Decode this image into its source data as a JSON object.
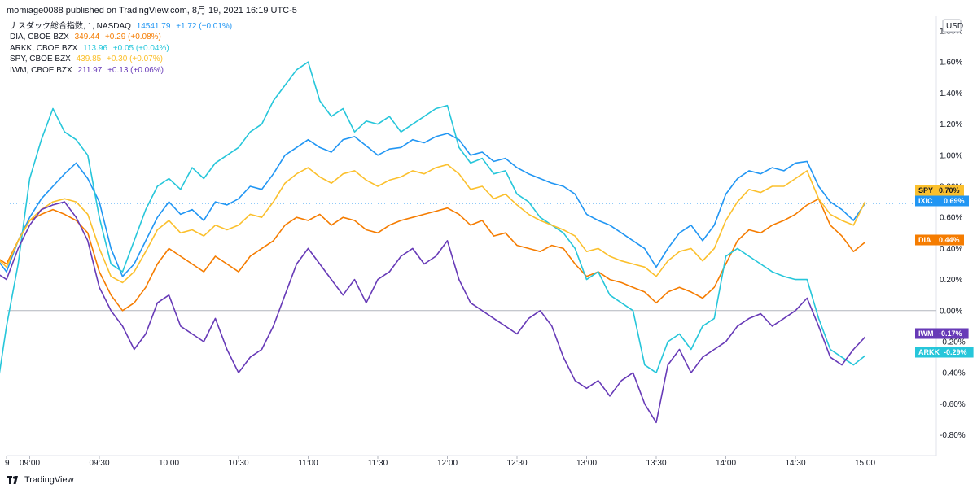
{
  "header": {
    "text": "momiage0088 published on TradingView.com, 8月 19, 2021 16:19 UTC-5"
  },
  "legend": [
    {
      "name": "ナスダック総合指数, 1, NASDAQ",
      "value": "14541.79",
      "change": "+1.72 (+0.01%)",
      "color": "#2196f3"
    },
    {
      "name": "DIA, CBOE BZX",
      "value": "349.44",
      "change": "+0.29 (+0.08%)",
      "color": "#f57c00"
    },
    {
      "name": "ARKK, CBOE BZX",
      "value": "113.96",
      "change": "+0.05 (+0.04%)",
      "color": "#26c6da"
    },
    {
      "name": "SPY, CBOE BZX",
      "value": "439.85",
      "change": "+0.30 (+0.07%)",
      "color": "#fbc02d"
    },
    {
      "name": "IWM, CBOE BZX",
      "value": "211.97",
      "change": "+0.13 (+0.06%)",
      "color": "#673ab7"
    }
  ],
  "footer": {
    "brand": "TradingView"
  },
  "chart_data": {
    "type": "line",
    "y_unit": "USD",
    "y_ticks": [
      "1.80%",
      "1.60%",
      "1.40%",
      "1.20%",
      "1.00%",
      "0.80%",
      "0.60%",
      "0.40%",
      "0.20%",
      "0.00%",
      "-0.20%",
      "-0.40%",
      "-0.60%",
      "-0.80%"
    ],
    "x_ticks": [
      "9",
      "09:00",
      "09:30",
      "10:00",
      "10:30",
      "11:00",
      "11:30",
      "12:00",
      "12:30",
      "13:00",
      "13:30",
      "14:00",
      "14:30",
      "15:00"
    ],
    "ylim": [
      -0.85,
      1.85
    ],
    "x_range": [
      "08:30",
      "15:05"
    ],
    "zero_line": 0,
    "last_price_line": 0.69,
    "series": [
      {
        "name": "IXIC",
        "color": "#2196f3",
        "last_label": "0.69%",
        "x": [
          "08:30",
          "08:35",
          "08:40",
          "08:45",
          "08:50",
          "08:55",
          "09:00",
          "09:05",
          "09:10",
          "09:15",
          "09:20",
          "09:25",
          "09:30",
          "09:35",
          "09:40",
          "09:45",
          "09:50",
          "09:55",
          "10:00",
          "10:05",
          "10:10",
          "10:15",
          "10:20",
          "10:25",
          "10:30",
          "10:35",
          "10:40",
          "10:45",
          "10:50",
          "10:55",
          "11:00",
          "11:05",
          "11:10",
          "11:15",
          "11:20",
          "11:25",
          "11:30",
          "11:35",
          "11:40",
          "11:45",
          "11:50",
          "11:55",
          "12:00",
          "12:05",
          "12:10",
          "12:15",
          "12:20",
          "12:25",
          "12:30",
          "12:35",
          "12:40",
          "12:45",
          "12:50",
          "12:55",
          "13:00",
          "13:05",
          "13:10",
          "13:15",
          "13:20",
          "13:25",
          "13:30",
          "13:35",
          "13:40",
          "13:45",
          "13:50",
          "13:55",
          "14:00",
          "14:05",
          "14:10",
          "14:15",
          "14:20",
          "14:25",
          "14:30",
          "14:35",
          "14:40",
          "14:45",
          "14:50",
          "14:55",
          "15:00"
        ],
        "y": [
          0.15,
          0.3,
          0.1,
          0.35,
          0.25,
          0.45,
          0.6,
          0.72,
          0.8,
          0.88,
          0.95,
          0.85,
          0.7,
          0.4,
          0.22,
          0.3,
          0.45,
          0.6,
          0.7,
          0.62,
          0.65,
          0.58,
          0.7,
          0.68,
          0.72,
          0.8,
          0.78,
          0.88,
          1.0,
          1.05,
          1.1,
          1.05,
          1.02,
          1.1,
          1.12,
          1.06,
          1.0,
          1.04,
          1.05,
          1.1,
          1.08,
          1.12,
          1.14,
          1.1,
          1.0,
          1.02,
          0.96,
          0.98,
          0.92,
          0.88,
          0.85,
          0.82,
          0.8,
          0.75,
          0.62,
          0.58,
          0.55,
          0.5,
          0.45,
          0.4,
          0.28,
          0.4,
          0.5,
          0.55,
          0.45,
          0.55,
          0.75,
          0.85,
          0.9,
          0.88,
          0.92,
          0.9,
          0.95,
          0.96,
          0.8,
          0.7,
          0.65,
          0.58,
          0.69
        ]
      },
      {
        "name": "DIA",
        "color": "#f57c00",
        "last_label": "0.44%",
        "x": [
          "08:30",
          "08:35",
          "08:40",
          "08:45",
          "08:50",
          "08:55",
          "09:00",
          "09:05",
          "09:10",
          "09:15",
          "09:20",
          "09:25",
          "09:30",
          "09:35",
          "09:40",
          "09:45",
          "09:50",
          "09:55",
          "10:00",
          "10:05",
          "10:10",
          "10:15",
          "10:20",
          "10:25",
          "10:30",
          "10:35",
          "10:40",
          "10:45",
          "10:50",
          "10:55",
          "11:00",
          "11:05",
          "11:10",
          "11:15",
          "11:20",
          "11:25",
          "11:30",
          "11:35",
          "11:40",
          "11:45",
          "11:50",
          "11:55",
          "12:00",
          "12:05",
          "12:10",
          "12:15",
          "12:20",
          "12:25",
          "12:30",
          "12:35",
          "12:40",
          "12:45",
          "12:50",
          "12:55",
          "13:00",
          "13:05",
          "13:10",
          "13:15",
          "13:20",
          "13:25",
          "13:30",
          "13:35",
          "13:40",
          "13:45",
          "13:50",
          "13:55",
          "14:00",
          "14:05",
          "14:10",
          "14:15",
          "14:20",
          "14:25",
          "14:30",
          "14:35",
          "14:40",
          "14:45",
          "14:50",
          "14:55",
          "15:00"
        ],
        "y": [
          0.2,
          0.32,
          0.15,
          0.35,
          0.3,
          0.45,
          0.58,
          0.62,
          0.65,
          0.62,
          0.58,
          0.5,
          0.25,
          0.1,
          0.0,
          0.05,
          0.15,
          0.3,
          0.4,
          0.35,
          0.3,
          0.25,
          0.35,
          0.3,
          0.25,
          0.35,
          0.4,
          0.45,
          0.55,
          0.6,
          0.58,
          0.62,
          0.55,
          0.6,
          0.58,
          0.52,
          0.5,
          0.55,
          0.58,
          0.6,
          0.62,
          0.64,
          0.66,
          0.62,
          0.55,
          0.58,
          0.48,
          0.5,
          0.42,
          0.4,
          0.38,
          0.42,
          0.4,
          0.3,
          0.22,
          0.25,
          0.2,
          0.18,
          0.15,
          0.12,
          0.05,
          0.12,
          0.15,
          0.12,
          0.08,
          0.15,
          0.3,
          0.45,
          0.52,
          0.5,
          0.55,
          0.58,
          0.62,
          0.68,
          0.72,
          0.55,
          0.48,
          0.38,
          0.44
        ]
      },
      {
        "name": "ARKK",
        "color": "#26c6da",
        "last_label": "-0.29%",
        "x": [
          "08:30",
          "08:35",
          "08:40",
          "08:45",
          "08:50",
          "08:55",
          "09:00",
          "09:05",
          "09:10",
          "09:15",
          "09:20",
          "09:25",
          "09:30",
          "09:35",
          "09:40",
          "09:45",
          "09:50",
          "09:55",
          "10:00",
          "10:05",
          "10:10",
          "10:15",
          "10:20",
          "10:25",
          "10:30",
          "10:35",
          "10:40",
          "10:45",
          "10:50",
          "10:55",
          "11:00",
          "11:05",
          "11:10",
          "11:15",
          "11:20",
          "11:25",
          "11:30",
          "11:35",
          "11:40",
          "11:45",
          "11:50",
          "11:55",
          "12:00",
          "12:05",
          "12:10",
          "12:15",
          "12:20",
          "12:25",
          "12:30",
          "12:35",
          "12:40",
          "12:45",
          "12:50",
          "12:55",
          "13:00",
          "13:05",
          "13:10",
          "13:15",
          "13:20",
          "13:25",
          "13:30",
          "13:35",
          "13:40",
          "13:45",
          "13:50",
          "13:55",
          "14:00",
          "14:05",
          "14:10",
          "14:15",
          "14:20",
          "14:25",
          "14:30",
          "14:35",
          "14:40",
          "14:45",
          "14:50",
          "14:55",
          "15:00"
        ],
        "y": [
          0.0,
          -0.2,
          -0.4,
          -0.6,
          -0.1,
          0.3,
          0.85,
          1.1,
          1.3,
          1.15,
          1.1,
          1.0,
          0.6,
          0.3,
          0.25,
          0.45,
          0.65,
          0.8,
          0.85,
          0.78,
          0.92,
          0.85,
          0.95,
          1.0,
          1.05,
          1.15,
          1.2,
          1.35,
          1.45,
          1.55,
          1.6,
          1.35,
          1.25,
          1.3,
          1.15,
          1.22,
          1.2,
          1.25,
          1.15,
          1.2,
          1.25,
          1.3,
          1.32,
          1.05,
          0.95,
          0.98,
          0.88,
          0.9,
          0.75,
          0.7,
          0.6,
          0.55,
          0.5,
          0.4,
          0.2,
          0.25,
          0.1,
          0.05,
          0.0,
          -0.35,
          -0.4,
          -0.2,
          -0.15,
          -0.25,
          -0.1,
          -0.05,
          0.35,
          0.4,
          0.35,
          0.3,
          0.25,
          0.22,
          0.2,
          0.2,
          -0.05,
          -0.25,
          -0.3,
          -0.35,
          -0.29
        ]
      },
      {
        "name": "SPY",
        "color": "#fbc02d",
        "last_label": "0.70%",
        "x": [
          "08:30",
          "08:35",
          "08:40",
          "08:45",
          "08:50",
          "08:55",
          "09:00",
          "09:05",
          "09:10",
          "09:15",
          "09:20",
          "09:25",
          "09:30",
          "09:35",
          "09:40",
          "09:45",
          "09:50",
          "09:55",
          "10:00",
          "10:05",
          "10:10",
          "10:15",
          "10:20",
          "10:25",
          "10:30",
          "10:35",
          "10:40",
          "10:45",
          "10:50",
          "10:55",
          "11:00",
          "11:05",
          "11:10",
          "11:15",
          "11:20",
          "11:25",
          "11:30",
          "11:35",
          "11:40",
          "11:45",
          "11:50",
          "11:55",
          "12:00",
          "12:05",
          "12:10",
          "12:15",
          "12:20",
          "12:25",
          "12:30",
          "12:35",
          "12:40",
          "12:45",
          "12:50",
          "12:55",
          "13:00",
          "13:05",
          "13:10",
          "13:15",
          "13:20",
          "13:25",
          "13:30",
          "13:35",
          "13:40",
          "13:45",
          "13:50",
          "13:55",
          "14:00",
          "14:05",
          "14:10",
          "14:15",
          "14:20",
          "14:25",
          "14:30",
          "14:35",
          "14:40",
          "14:45",
          "14:50",
          "14:55",
          "15:00"
        ],
        "y": [
          0.18,
          0.3,
          0.12,
          0.35,
          0.28,
          0.45,
          0.58,
          0.65,
          0.7,
          0.72,
          0.7,
          0.62,
          0.4,
          0.22,
          0.18,
          0.25,
          0.38,
          0.52,
          0.58,
          0.5,
          0.52,
          0.48,
          0.55,
          0.52,
          0.55,
          0.62,
          0.6,
          0.7,
          0.82,
          0.88,
          0.92,
          0.86,
          0.82,
          0.88,
          0.9,
          0.84,
          0.8,
          0.84,
          0.86,
          0.9,
          0.88,
          0.92,
          0.94,
          0.88,
          0.78,
          0.8,
          0.72,
          0.75,
          0.68,
          0.62,
          0.58,
          0.55,
          0.52,
          0.48,
          0.38,
          0.4,
          0.35,
          0.32,
          0.3,
          0.28,
          0.22,
          0.32,
          0.38,
          0.4,
          0.32,
          0.4,
          0.58,
          0.7,
          0.78,
          0.76,
          0.8,
          0.8,
          0.85,
          0.9,
          0.72,
          0.62,
          0.58,
          0.55,
          0.7
        ]
      },
      {
        "name": "IWM",
        "color": "#673ab7",
        "last_label": "-0.17%",
        "x": [
          "08:30",
          "08:35",
          "08:40",
          "08:45",
          "08:50",
          "08:55",
          "09:00",
          "09:05",
          "09:10",
          "09:15",
          "09:20",
          "09:25",
          "09:30",
          "09:35",
          "09:40",
          "09:45",
          "09:50",
          "09:55",
          "10:00",
          "10:05",
          "10:10",
          "10:15",
          "10:20",
          "10:25",
          "10:30",
          "10:35",
          "10:40",
          "10:45",
          "10:50",
          "10:55",
          "11:00",
          "11:05",
          "11:10",
          "11:15",
          "11:20",
          "11:25",
          "11:30",
          "11:35",
          "11:40",
          "11:45",
          "11:50",
          "11:55",
          "12:00",
          "12:05",
          "12:10",
          "12:15",
          "12:20",
          "12:25",
          "12:30",
          "12:35",
          "12:40",
          "12:45",
          "12:50",
          "12:55",
          "13:00",
          "13:05",
          "13:10",
          "13:15",
          "13:20",
          "13:25",
          "13:30",
          "13:35",
          "13:40",
          "13:45",
          "13:50",
          "13:55",
          "14:00",
          "14:05",
          "14:10",
          "14:15",
          "14:20",
          "14:25",
          "14:30",
          "14:35",
          "14:40",
          "14:45",
          "14:50",
          "14:55",
          "15:00"
        ],
        "y": [
          0.15,
          0.3,
          0.05,
          0.25,
          0.2,
          0.4,
          0.55,
          0.65,
          0.68,
          0.7,
          0.6,
          0.45,
          0.15,
          0.0,
          -0.1,
          -0.25,
          -0.15,
          0.05,
          0.1,
          -0.1,
          -0.15,
          -0.2,
          -0.05,
          -0.25,
          -0.4,
          -0.3,
          -0.25,
          -0.1,
          0.1,
          0.3,
          0.4,
          0.3,
          0.2,
          0.1,
          0.2,
          0.05,
          0.2,
          0.25,
          0.35,
          0.4,
          0.3,
          0.35,
          0.45,
          0.2,
          0.05,
          0.0,
          -0.05,
          -0.1,
          -0.15,
          -0.05,
          0.0,
          -0.1,
          -0.3,
          -0.45,
          -0.5,
          -0.45,
          -0.55,
          -0.45,
          -0.4,
          -0.6,
          -0.72,
          -0.35,
          -0.25,
          -0.4,
          -0.3,
          -0.25,
          -0.2,
          -0.1,
          -0.05,
          -0.02,
          -0.1,
          -0.05,
          0.0,
          0.08,
          -0.1,
          -0.3,
          -0.35,
          -0.25,
          -0.17
        ]
      }
    ]
  }
}
